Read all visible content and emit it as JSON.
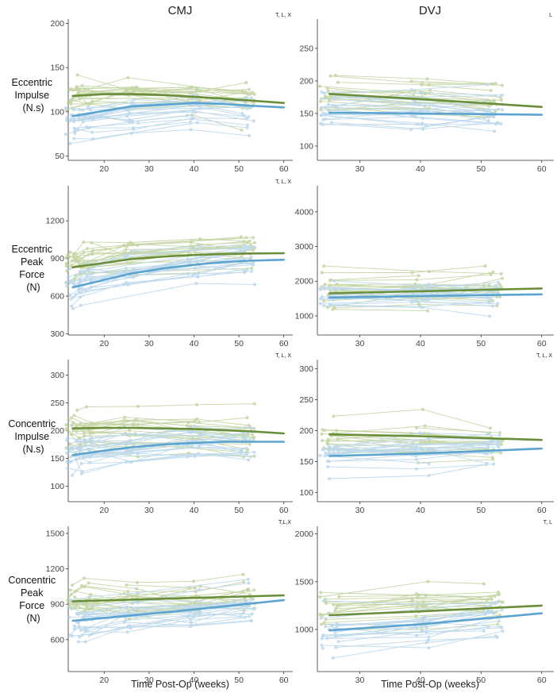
{
  "figure": {
    "column_titles": [
      "CMJ",
      "DVJ"
    ],
    "row_labels": [
      [
        "Eccentric",
        "Impulse",
        "(N.s)"
      ],
      [
        "Eccentric",
        "Peak",
        "Force",
        "(N)"
      ],
      [
        "Concentric",
        "Impulse",
        "(N.s)"
      ],
      [
        "Concentric",
        "Peak",
        "Force",
        "(N)"
      ]
    ],
    "xlabel": "Time Post-Op (weeks)"
  },
  "colors": {
    "green": "#6b8e3a",
    "blue": "#5ba3d0",
    "light_green": "#b4c98a",
    "light_blue": "#a9cde6"
  },
  "chart_data": [
    {
      "type": "line",
      "panel": "CMJ Eccentric Impulse",
      "note": "T, L, X",
      "xlim": [
        12,
        62
      ],
      "ylim": [
        45,
        205
      ],
      "xticks": [
        20,
        30,
        40,
        50,
        60
      ],
      "yticks": [
        50,
        100,
        150,
        200
      ],
      "x_range": [
        13,
        60
      ],
      "series": [
        {
          "name": "green",
          "x": [
            13,
            20,
            26,
            33,
            40,
            46,
            52,
            60
          ],
          "values": [
            118,
            120,
            120,
            119,
            117,
            115,
            113,
            110
          ]
        },
        {
          "name": "blue",
          "x": [
            13,
            20,
            26,
            33,
            40,
            46,
            52,
            60
          ],
          "values": [
            95,
            101,
            106,
            108,
            110,
            109,
            107,
            105
          ]
        }
      ]
    },
    {
      "type": "line",
      "panel": "DVJ Eccentric Impulse",
      "note": "L",
      "xlim": [
        23,
        62
      ],
      "ylim": [
        78,
        295
      ],
      "xticks": [
        30,
        40,
        50,
        60
      ],
      "yticks": [
        100,
        150,
        200,
        250
      ],
      "x_range": [
        25,
        60
      ],
      "series": [
        {
          "name": "green",
          "x": [
            25,
            40,
            60
          ],
          "values": [
            180,
            172,
            160
          ]
        },
        {
          "name": "blue",
          "x": [
            25,
            40,
            60
          ],
          "values": [
            151,
            150,
            148
          ]
        }
      ]
    },
    {
      "type": "line",
      "panel": "CMJ Eccentric Peak Force",
      "note": "T, L, X",
      "xlim": [
        12,
        62
      ],
      "ylim": [
        290,
        1480
      ],
      "xticks": [
        20,
        30,
        40,
        50,
        60
      ],
      "yticks": [
        300,
        600,
        900,
        1200
      ],
      "x_range": [
        13,
        60
      ],
      "series": [
        {
          "name": "green",
          "x": [
            13,
            20,
            26,
            33,
            40,
            46,
            52,
            60
          ],
          "values": [
            830,
            865,
            895,
            915,
            928,
            935,
            940,
            942
          ]
        },
        {
          "name": "blue",
          "x": [
            13,
            20,
            26,
            33,
            40,
            46,
            52,
            60
          ],
          "values": [
            670,
            730,
            780,
            820,
            850,
            870,
            882,
            890
          ]
        }
      ]
    },
    {
      "type": "line",
      "panel": "DVJ Eccentric Peak Force",
      "note": "",
      "xlim": [
        23,
        62
      ],
      "ylim": [
        450,
        4750
      ],
      "xticks": [
        30,
        40,
        50,
        60
      ],
      "yticks": [
        1000,
        2000,
        3000,
        4000
      ],
      "x_range": [
        25,
        60
      ],
      "series": [
        {
          "name": "green",
          "x": [
            25,
            40,
            60
          ],
          "values": [
            1650,
            1710,
            1790
          ]
        },
        {
          "name": "blue",
          "x": [
            25,
            40,
            60
          ],
          "values": [
            1530,
            1570,
            1620
          ]
        }
      ]
    },
    {
      "type": "line",
      "panel": "CMJ Concentric Impulse",
      "note": "T, L, X",
      "xlim": [
        12,
        62
      ],
      "ylim": [
        72,
        328
      ],
      "xticks": [
        20,
        30,
        40,
        50,
        60
      ],
      "yticks": [
        100,
        150,
        200,
        250,
        300
      ],
      "x_range": [
        13,
        60
      ],
      "series": [
        {
          "name": "green",
          "x": [
            13,
            20,
            26,
            33,
            40,
            46,
            52,
            60
          ],
          "values": [
            204,
            205,
            205,
            204,
            203,
            201,
            199,
            195
          ]
        },
        {
          "name": "blue",
          "x": [
            13,
            20,
            26,
            33,
            40,
            46,
            52,
            60
          ],
          "values": [
            156,
            164,
            170,
            175,
            178,
            180,
            180,
            180
          ]
        }
      ]
    },
    {
      "type": "line",
      "panel": "DVJ Concentric Impulse",
      "note": "T, L, X",
      "xlim": [
        23,
        62
      ],
      "ylim": [
        85,
        315
      ],
      "xticks": [
        30,
        40,
        50,
        60
      ],
      "yticks": [
        100,
        150,
        200,
        250,
        300
      ],
      "x_range": [
        25,
        60
      ],
      "series": [
        {
          "name": "green",
          "x": [
            25,
            40,
            60
          ],
          "values": [
            194,
            191,
            185
          ]
        },
        {
          "name": "blue",
          "x": [
            25,
            40,
            60
          ],
          "values": [
            159,
            163,
            171
          ]
        }
      ]
    },
    {
      "type": "line",
      "panel": "CMJ Concentric Peak Force",
      "note": "T,L,X",
      "xlim": [
        12,
        62
      ],
      "ylim": [
        330,
        1560
      ],
      "xticks": [
        20,
        30,
        40,
        50,
        60
      ],
      "yticks": [
        600,
        900,
        1200,
        1500
      ],
      "x_range": [
        13,
        60
      ],
      "series": [
        {
          "name": "green",
          "x": [
            13,
            36,
            60
          ],
          "values": [
            925,
            950,
            975
          ]
        },
        {
          "name": "blue",
          "x": [
            13,
            36,
            60
          ],
          "values": [
            760,
            840,
            935
          ]
        }
      ]
    },
    {
      "type": "line",
      "panel": "DVJ Concentric Peak Force",
      "note": "T, L",
      "xlim": [
        23,
        62
      ],
      "ylim": [
        560,
        2080
      ],
      "xticks": [
        30,
        40,
        50,
        60
      ],
      "yticks": [
        1000,
        1500,
        2000
      ],
      "x_range": [
        25,
        60
      ],
      "series": [
        {
          "name": "green",
          "x": [
            25,
            40,
            60
          ],
          "values": [
            1150,
            1190,
            1250
          ]
        },
        {
          "name": "blue",
          "x": [
            25,
            40,
            60
          ],
          "values": [
            990,
            1055,
            1170
          ]
        }
      ]
    }
  ]
}
